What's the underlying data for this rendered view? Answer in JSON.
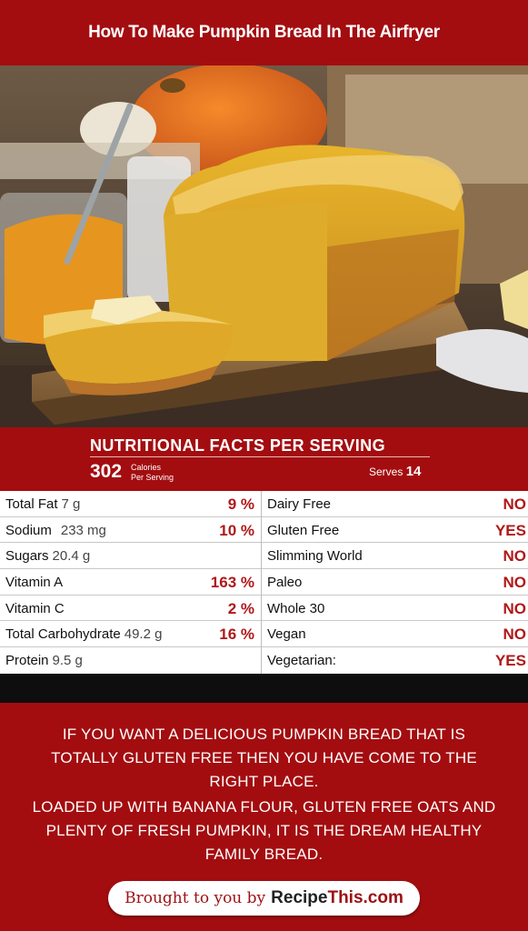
{
  "header": {
    "title": "How To Make Pumpkin Bread In The Airfryer"
  },
  "nutrition": {
    "heading": "NUTRITIONAL FACTS PER SERVING",
    "calories": "302",
    "calories_label_1": "Calories",
    "calories_label_2": "Per Serving",
    "serves_label": "Serves",
    "serves_value": "14",
    "left_rows": [
      {
        "label": "Total Fat",
        "amount": "7 g",
        "pct": "9 %"
      },
      {
        "label": "Sodium",
        "amount": "233 mg",
        "pct": "10 %"
      },
      {
        "label": "Sugars",
        "amount": "20.4 g",
        "pct": ""
      },
      {
        "label": "Vitamin A",
        "amount": "",
        "pct": "163 %"
      },
      {
        "label": "Vitamin C",
        "amount": "",
        "pct": "2 %"
      },
      {
        "label": "Total Carbohydrate",
        "amount": "49.2 g",
        "pct": "16 %"
      },
      {
        "label": "Protein",
        "amount": "9.5 g",
        "pct": ""
      }
    ],
    "right_rows": [
      {
        "label": "Dairy Free",
        "value": "NO"
      },
      {
        "label": "Gluten Free",
        "value": "YES"
      },
      {
        "label": "Slimming World",
        "value": "NO"
      },
      {
        "label": "Paleo",
        "value": "NO"
      },
      {
        "label": "Whole 30",
        "value": "NO"
      },
      {
        "label": "Vegan",
        "value": "NO"
      },
      {
        "label": "Vegetarian:",
        "value": "YES"
      }
    ]
  },
  "description": {
    "para1": "IF YOU WANT A DELICIOUS PUMPKIN BREAD THAT IS TOTALLY GLUTEN FREE THEN YOU HAVE COME TO THE RIGHT PLACE.",
    "para2": "LOADED UP WITH BANANA FLOUR, GLUTEN FREE OATS AND PLENTY OF FRESH PUMPKIN, IT IS THE DREAM HEALTHY FAMILY BREAD."
  },
  "footer": {
    "prefix": "Brought to you by",
    "logo_part1": "Recipe",
    "logo_part2": "This.com"
  },
  "colors": {
    "brand_red": "#a30d10",
    "value_red": "#b01818"
  }
}
